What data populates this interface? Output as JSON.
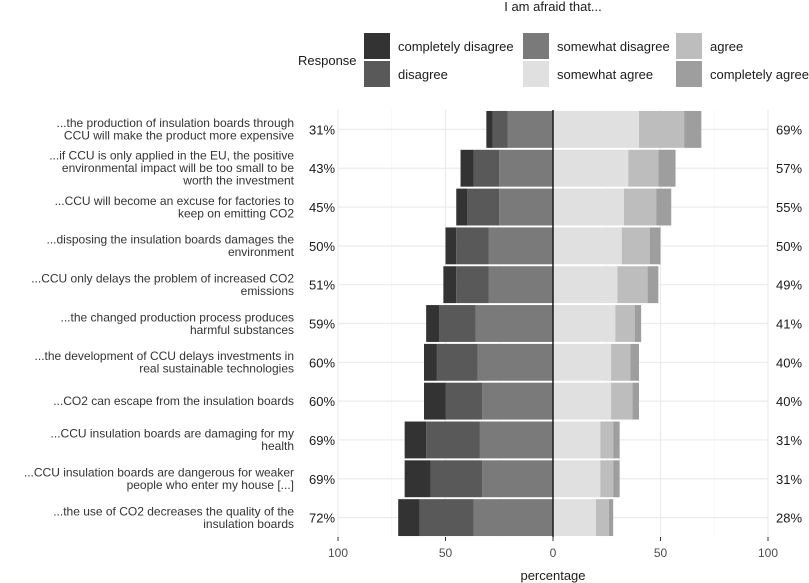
{
  "chart_data": {
    "type": "bar",
    "orientation": "horizontal-diverging",
    "title": "I am afraid that...",
    "xlabel": "percentage",
    "ylabel": "",
    "xlim": [
      -100,
      100
    ],
    "xticks": [
      -100,
      -50,
      0,
      50,
      100
    ],
    "xtick_labels": [
      "100",
      "50",
      "0",
      "50",
      "100"
    ],
    "grid": true,
    "legend": {
      "title": "Response",
      "placement": "top",
      "entries": [
        {
          "label": "completely disagree",
          "color": "#333333"
        },
        {
          "label": "somewhat disagree",
          "color": "#7a7a7a"
        },
        {
          "label": "agree",
          "color": "#bdbdbd"
        },
        {
          "label": "disagree",
          "color": "#595959"
        },
        {
          "label": "somewhat agree",
          "color": "#e0e0e0"
        },
        {
          "label": "completely agree",
          "color": "#9e9e9e"
        }
      ]
    },
    "series_order_left": [
      "completely disagree",
      "disagree",
      "somewhat disagree"
    ],
    "series_order_right": [
      "somewhat agree",
      "agree",
      "completely agree"
    ],
    "categories": [
      {
        "label": [
          "...the production of insulation boards through",
          "CCU will make the product more expensive"
        ],
        "left_pct": "31%",
        "right_pct": "69%",
        "completely_disagree": 3,
        "disagree": 7,
        "somewhat_disagree": 21,
        "somewhat_agree": 40,
        "agree": 21,
        "completely_agree": 8
      },
      {
        "label": [
          "...if CCU is only applied in the EU, the positive",
          "environmental impact will be too small to be",
          "worth the investment"
        ],
        "left_pct": "43%",
        "right_pct": "57%",
        "completely_disagree": 6,
        "disagree": 12,
        "somewhat_disagree": 25,
        "somewhat_agree": 35,
        "agree": 14,
        "completely_agree": 8
      },
      {
        "label": [
          "...CCU will become an excuse for factories to",
          "keep on emitting CO2"
        ],
        "left_pct": "45%",
        "right_pct": "55%",
        "completely_disagree": 5,
        "disagree": 15,
        "somewhat_disagree": 25,
        "somewhat_agree": 33,
        "agree": 15,
        "completely_agree": 7
      },
      {
        "label": [
          "...disposing the insulation boards damages the",
          "environment"
        ],
        "left_pct": "50%",
        "right_pct": "50%",
        "completely_disagree": 5,
        "disagree": 15,
        "somewhat_disagree": 30,
        "somewhat_agree": 32,
        "agree": 13,
        "completely_agree": 5
      },
      {
        "label": [
          "...CCU only delays the problem of increased CO2",
          "emissions"
        ],
        "left_pct": "51%",
        "right_pct": "49%",
        "completely_disagree": 6,
        "disagree": 15,
        "somewhat_disagree": 30,
        "somewhat_agree": 30,
        "agree": 14,
        "completely_agree": 5
      },
      {
        "label": [
          "...the changed production process produces",
          "harmful substances"
        ],
        "left_pct": "59%",
        "right_pct": "41%",
        "completely_disagree": 6,
        "disagree": 17,
        "somewhat_disagree": 36,
        "somewhat_agree": 29,
        "agree": 9,
        "completely_agree": 3
      },
      {
        "label": [
          "...the development of CCU delays investments in",
          "real sustainable technologies"
        ],
        "left_pct": "60%",
        "right_pct": "40%",
        "completely_disagree": 6,
        "disagree": 19,
        "somewhat_disagree": 35,
        "somewhat_agree": 27,
        "agree": 9,
        "completely_agree": 4
      },
      {
        "label": [
          "...CO2 can escape from the insulation boards"
        ],
        "left_pct": "60%",
        "right_pct": "40%",
        "completely_disagree": 10,
        "disagree": 17,
        "somewhat_disagree": 33,
        "somewhat_agree": 27,
        "agree": 10,
        "completely_agree": 3
      },
      {
        "label": [
          "...CCU insulation boards are damaging for my",
          "health"
        ],
        "left_pct": "69%",
        "right_pct": "31%",
        "completely_disagree": 10,
        "disagree": 25,
        "somewhat_disagree": 34,
        "somewhat_agree": 22,
        "agree": 6,
        "completely_agree": 3
      },
      {
        "label": [
          "...CCU insulation boards are dangerous for weaker",
          "people who enter my house [...]"
        ],
        "left_pct": "69%",
        "right_pct": "31%",
        "completely_disagree": 12,
        "disagree": 24,
        "somewhat_disagree": 33,
        "somewhat_agree": 22,
        "agree": 6,
        "completely_agree": 3
      },
      {
        "label": [
          "...the use of CO2 decreases the quality of the",
          "insulation boards"
        ],
        "left_pct": "72%",
        "right_pct": "28%",
        "completely_disagree": 10,
        "disagree": 25,
        "somewhat_disagree": 37,
        "somewhat_agree": 20,
        "agree": 6,
        "completely_agree": 2
      }
    ]
  }
}
